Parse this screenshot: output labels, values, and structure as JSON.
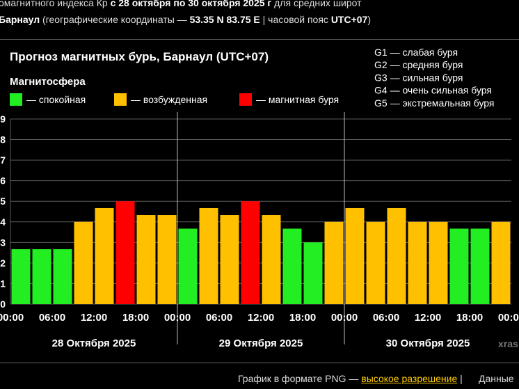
{
  "header": {
    "line1_a": "омагнитного индекса Кр ",
    "line1_b": "с 28 октября по 30 октября 2025 г",
    "line1_c": " для средних широт",
    "city": "Барнаул",
    "coords_a": " (географические координаты — ",
    "coords_b": "53.35 N 83.75 E",
    "coords_c": " | часовой пояс ",
    "coords_d": "UTC+07",
    "coords_e": ")"
  },
  "chart_data": {
    "type": "bar",
    "title": "Прогноз магнитных бурь, Барнаул (UTC+07)",
    "legend_title": "Магнитосфера",
    "legend": [
      {
        "label": "— спокойная",
        "color": "#22ee22"
      },
      {
        "label": "— возбужденная",
        "color": "#ffc000"
      },
      {
        "label": "— магнитная буря",
        "color": "#ff0000"
      }
    ],
    "g_scale": [
      "G1 — слабая буря",
      "G2 — средняя буря",
      "G3 — сильная буря",
      "G4 — очень сильная буря",
      "G5 — экстремальная буря"
    ],
    "y_ticks": [
      "0",
      "1",
      "2",
      "3",
      "4",
      "5",
      "6",
      "7",
      "8",
      "9"
    ],
    "ylim": [
      0,
      9
    ],
    "x_ticks": [
      "00:00",
      "06:00",
      "12:00",
      "18:00",
      "00:00",
      "06:00",
      "12:00",
      "18:00",
      "00:00",
      "06:00",
      "12:00",
      "18:00",
      "00:00"
    ],
    "days": [
      "28 Октября 2025",
      "29 Октября 2025",
      "30 Октября 2025"
    ],
    "values": [
      2.67,
      2.67,
      2.67,
      4.0,
      4.67,
      5.0,
      4.33,
      4.33,
      3.67,
      4.67,
      4.33,
      5.0,
      4.33,
      3.67,
      3.0,
      4.0,
      4.67,
      4.0,
      4.67,
      4.0,
      4.0,
      3.67,
      3.67,
      4.0
    ],
    "levels": [
      "quiet",
      "quiet",
      "quiet",
      "active",
      "active",
      "storm",
      "active",
      "active",
      "quiet",
      "active",
      "active",
      "storm",
      "active",
      "quiet",
      "quiet",
      "active",
      "active",
      "active",
      "active",
      "active",
      "active",
      "quiet",
      "quiet",
      "active"
    ],
    "colors": {
      "quiet": "#22ee22",
      "active": "#ffc000",
      "storm": "#ff0000"
    },
    "watermark": "xras"
  },
  "footer": {
    "png_text": "График в формате PNG — ",
    "hires_link": "высокое разрешение",
    "sep": " |",
    "data_text": "Данные"
  }
}
